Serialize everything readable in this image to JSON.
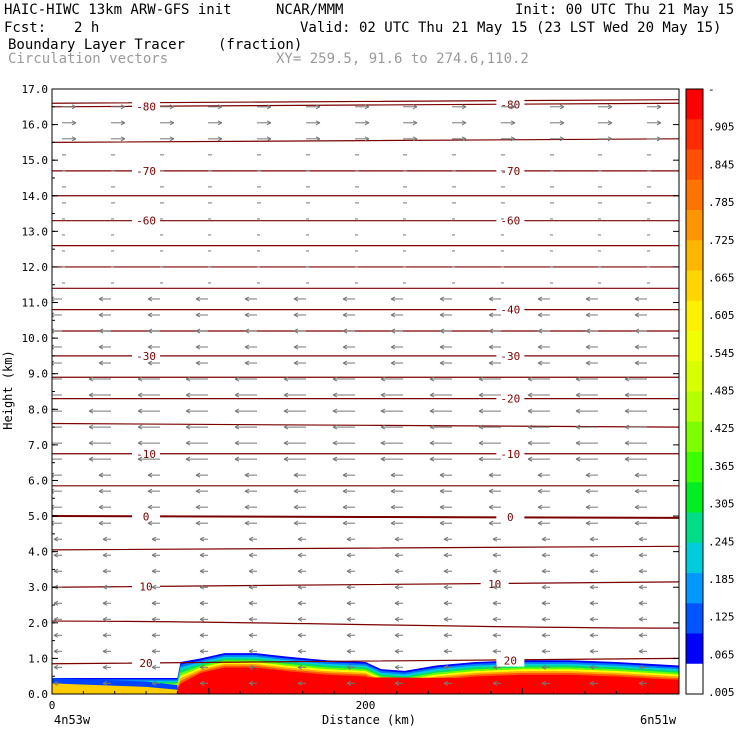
{
  "header": {
    "model": "HAIC-HIWC 13km ARW-GFS init",
    "org": "NCAR/MMM",
    "init": "Init: 00 UTC Thu 21 May 15",
    "fcst_label": "Fcst:",
    "fcst_value": "2 h",
    "valid": "Valid: 02 UTC Thu 21 May 15 (23 LST Wed 20 May 15)",
    "field": "Boundary Layer Tracer",
    "field_units": "(fraction)",
    "vectors": "Circulation vectors",
    "xy": "XY= 259.5, 91.6 to 274.6,110.2"
  },
  "chart_data": {
    "type": "cross-section",
    "title": "Boundary Layer Tracer",
    "units": "(fraction)",
    "ylabel": "Height (km)",
    "xlabel": "Distance (km)",
    "xlim": [
      0,
      400
    ],
    "ylim": [
      0,
      17
    ],
    "y_ticks": [
      "0.0",
      "1.0",
      "2.0",
      "3.0",
      "4.0",
      "5.0",
      "6.0",
      "7.0",
      "8.0",
      "9.0",
      "10.0",
      "11.0",
      "12.0",
      "13.0",
      "14.0",
      "15.0",
      "16.0",
      "17.0"
    ],
    "x_tick_values": [
      0,
      200
    ],
    "x_tick_labels": [
      "0",
      "200"
    ],
    "x_endpoint_labels": [
      "4n53w",
      "6n51w"
    ],
    "colorbar_labels": [
      "-",
      ".905",
      ".845",
      ".785",
      ".725",
      ".665",
      ".605",
      ".545",
      ".485",
      ".425",
      ".365",
      ".305",
      ".245",
      ".185",
      ".125",
      ".065",
      ".005"
    ],
    "colorbar_colors": [
      "#ff0000",
      "#ff2a00",
      "#ff4f00",
      "#ff7400",
      "#ff9500",
      "#ffb600",
      "#ffd400",
      "#fff000",
      "#f0ff00",
      "#d8ff00",
      "#b4ff00",
      "#7cff00",
      "#3cff00",
      "#00ee22",
      "#00dd88",
      "#00ccdd",
      "#0099ff",
      "#0055ff",
      "#0000ff",
      "#ffffff"
    ],
    "temperature_contours": [
      {
        "label": "-80",
        "y": [
          16.5,
          16.6
        ]
      },
      {
        "label": "-70",
        "y": [
          14.7,
          14.7
        ]
      },
      {
        "label": "-60",
        "y": [
          13.3,
          13.3
        ]
      },
      {
        "label": "",
        "y": [
          16.6,
          16.7
        ]
      },
      {
        "label": "",
        "y": [
          15.5,
          15.6
        ]
      },
      {
        "label": "",
        "y": [
          14.0,
          14.0
        ]
      },
      {
        "label": "",
        "y": [
          12.6,
          12.6
        ]
      },
      {
        "label": "",
        "y": [
          12.0,
          12.0
        ]
      },
      {
        "label": "",
        "y": [
          11.4,
          11.4
        ]
      },
      {
        "label": "-40",
        "y": [
          10.8,
          10.8
        ]
      },
      {
        "label": "",
        "y": [
          10.2,
          10.2
        ]
      },
      {
        "label": "-30",
        "y": [
          9.5,
          9.5
        ]
      },
      {
        "label": "",
        "y": [
          8.9,
          8.9
        ]
      },
      {
        "label": "-20",
        "y": [
          8.3,
          8.3
        ]
      },
      {
        "label": "",
        "y": [
          7.6,
          7.5
        ]
      },
      {
        "label": "-10",
        "y": [
          6.75,
          6.75
        ]
      },
      {
        "label": "",
        "y": [
          5.85,
          5.85
        ]
      },
      {
        "label": "0",
        "y": [
          5.0,
          4.95
        ]
      },
      {
        "label": "",
        "y": [
          4.05,
          4.15
        ]
      },
      {
        "label": "10",
        "y": [
          3.0,
          3.15
        ]
      },
      {
        "label": "",
        "y": [
          2.05,
          1.85
        ]
      },
      {
        "label": "20",
        "y": [
          0.85,
          1.0
        ]
      }
    ],
    "contour_label_positions": [
      {
        "label": "-80",
        "x": [
          60,
          235
        ]
      },
      {
        "label": "-70",
        "x": [
          60,
          235
        ]
      },
      {
        "label": "-60",
        "x": [
          60,
          235
        ]
      },
      {
        "label": "-40",
        "x": [
          235
        ]
      },
      {
        "label": "-30",
        "x": [
          60,
          235
        ]
      },
      {
        "label": "-20",
        "x": [
          235
        ]
      },
      {
        "label": "-10",
        "x": [
          60,
          235
        ]
      },
      {
        "label": "0",
        "x": [
          60,
          235
        ]
      },
      {
        "label": "10",
        "x": [
          60,
          225
        ]
      },
      {
        "label": "20",
        "x": [
          60,
          235
        ]
      }
    ],
    "tracer_top_km": [
      [
        0,
        0.45
      ],
      [
        60,
        0.45
      ],
      [
        80,
        0.45
      ],
      [
        82,
        0.9
      ],
      [
        95,
        1.0
      ],
      [
        110,
        1.15
      ],
      [
        130,
        1.15
      ],
      [
        150,
        1.05
      ],
      [
        175,
        0.95
      ],
      [
        200,
        0.9
      ],
      [
        210,
        0.7
      ],
      [
        225,
        0.65
      ],
      [
        245,
        0.8
      ],
      [
        270,
        0.9
      ],
      [
        300,
        0.95
      ],
      [
        330,
        0.95
      ],
      [
        360,
        0.9
      ],
      [
        380,
        0.85
      ],
      [
        400,
        0.8
      ]
    ]
  }
}
